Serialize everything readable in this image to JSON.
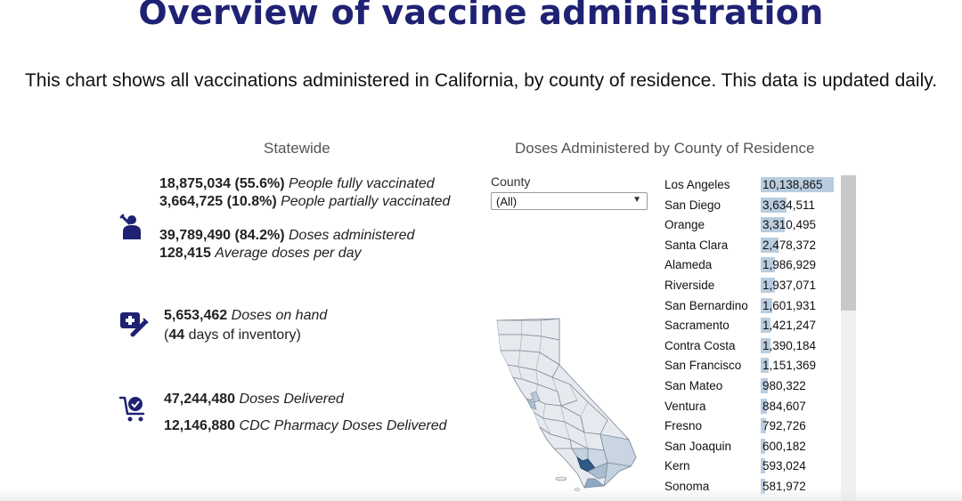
{
  "title": "Overview of vaccine administration",
  "subtitle": "This chart shows all vaccinations administered in California, by county of residence. This data is updated daily.",
  "statewide": {
    "heading": "Statewide",
    "fully_vaccinated": {
      "value": "18,875,034 (55.6%)",
      "label": "People fully vaccinated"
    },
    "partially_vaccinated": {
      "value": "3,664,725 (10.8%)",
      "label": "People partially vaccinated"
    },
    "doses_administered": {
      "value": "39,789,490 (84.2%)",
      "label": "Doses administered"
    },
    "average_doses": {
      "value": "128,415",
      "label": "Average doses per day"
    },
    "doses_on_hand": {
      "value": "5,653,462",
      "label": "Doses on hand"
    },
    "inventory": {
      "open": "(",
      "days": "44",
      "rest": " days of inventory)"
    },
    "doses_delivered": {
      "value": "47,244,480",
      "label": "Doses Delivered"
    },
    "cdc_pharmacy": {
      "value": "12,146,880",
      "label": "CDC Pharmacy Doses Delivered"
    }
  },
  "county_panel": {
    "heading": "Doses Administered by County of Residence",
    "filter_label": "County",
    "filter_value": "(All)"
  },
  "colors": {
    "title": "#1f2273",
    "icon": "#1f2273",
    "bar": "#b9cde0",
    "map_dark": "#2e5b86"
  },
  "icons": {
    "syringe_person": "vaccinated-person-icon",
    "medkit": "medical-kit-syringe-icon",
    "cart": "cart-check-icon"
  },
  "chart_data": {
    "type": "bar",
    "title": "Doses Administered by County of Residence",
    "categories": [
      "Los Angeles",
      "San Diego",
      "Orange",
      "Santa Clara",
      "Alameda",
      "Riverside",
      "San Bernardino",
      "Sacramento",
      "Contra Costa",
      "San Francisco",
      "San Mateo",
      "Ventura",
      "Fresno",
      "San Joaquin",
      "Kern",
      "Sonoma"
    ],
    "labels": [
      "10,138,865",
      "3,634,511",
      "3,310,495",
      "2,478,372",
      "1,986,929",
      "1,937,071",
      "1,601,931",
      "1,421,247",
      "1,390,184",
      "1,151,369",
      "980,322",
      "884,607",
      "792,726",
      "600,182",
      "593,024",
      "581,972"
    ],
    "values": [
      10138865,
      3634511,
      3310495,
      2478372,
      1986929,
      1937071,
      1601931,
      1421247,
      1390184,
      1151369,
      980322,
      884607,
      792726,
      600182,
      593024,
      581972
    ]
  }
}
